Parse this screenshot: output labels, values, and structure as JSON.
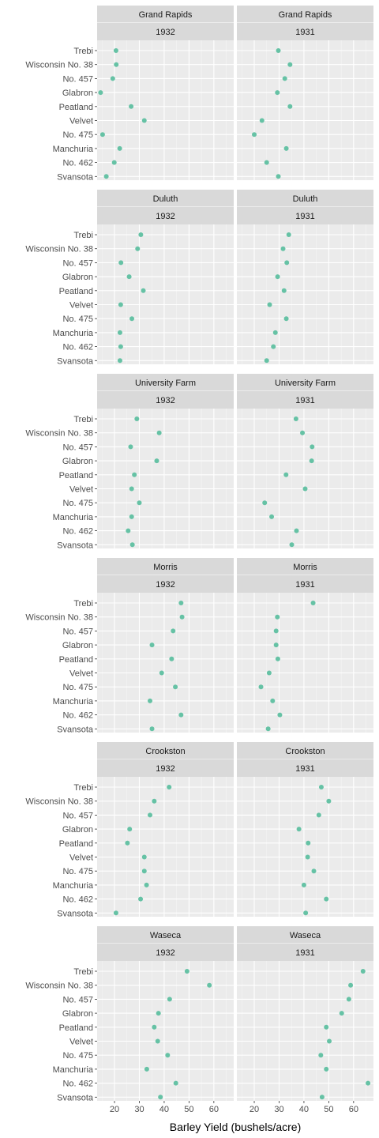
{
  "chart_data": {
    "type": "scatter",
    "xlabel": "Barley Yield (bushels/acre)",
    "xticks": [
      20,
      30,
      40,
      50,
      60
    ],
    "xlim": [
      13,
      68
    ],
    "point_color": "#66c2a5",
    "varieties": [
      "Trebi",
      "Wisconsin No. 38",
      "No. 457",
      "Glabron",
      "Peatland",
      "Velvet",
      "No. 475",
      "Manchuria",
      "No. 462",
      "Svansota"
    ],
    "years": [
      "1932",
      "1931"
    ],
    "sites": [
      {
        "name": "Grand Rapids",
        "values": {
          "1932": [
            20.6,
            20.7,
            19.3,
            14.4,
            26.7,
            32.0,
            15.2,
            22.1,
            19.9,
            16.7
          ],
          "1931": [
            29.7,
            34.4,
            32.3,
            29.3,
            34.4,
            23.1,
            20.0,
            32.9,
            25.0,
            29.7
          ]
        }
      },
      {
        "name": "Duluth",
        "values": {
          "1932": [
            30.6,
            29.3,
            22.6,
            25.9,
            31.6,
            22.5,
            27.0,
            22.2,
            22.5,
            22.2
          ],
          "1931": [
            33.9,
            31.6,
            33.1,
            29.4,
            32.0,
            26.2,
            32.9,
            28.5,
            27.7,
            25.0
          ]
        }
      },
      {
        "name": "University Farm",
        "values": {
          "1932": [
            29.0,
            38.0,
            26.5,
            37.0,
            28.0,
            26.9,
            30.0,
            26.9,
            25.5,
            27.2
          ],
          "1931": [
            36.8,
            39.4,
            43.3,
            43.1,
            32.8,
            40.5,
            24.2,
            27.0,
            37.0,
            35.1
          ]
        }
      },
      {
        "name": "Morris",
        "values": {
          "1932": [
            46.8,
            47.2,
            43.6,
            35.1,
            43.0,
            39.0,
            44.5,
            34.3,
            46.8,
            35.1
          ],
          "1931": [
            43.7,
            29.3,
            28.8,
            28.8,
            29.5,
            26.0,
            22.7,
            27.4,
            30.3,
            25.6
          ]
        }
      },
      {
        "name": "Crookston",
        "values": {
          "1932": [
            42.0,
            36.0,
            34.3,
            26.1,
            25.2,
            32.0,
            32.0,
            32.9,
            30.5,
            20.6
          ],
          "1931": [
            47.0,
            50.0,
            46.0,
            38.0,
            41.7,
            41.5,
            44.0,
            40.0,
            49.0,
            40.7
          ]
        }
      },
      {
        "name": "Waseca",
        "values": {
          "1932": [
            49.2,
            58.2,
            42.2,
            37.7,
            36.0,
            37.4,
            41.4,
            33.0,
            44.7,
            38.5
          ],
          "1931": [
            63.8,
            58.8,
            58.1,
            55.2,
            49.0,
            50.2,
            46.8,
            49.0,
            65.8,
            47.3
          ]
        }
      }
    ]
  }
}
